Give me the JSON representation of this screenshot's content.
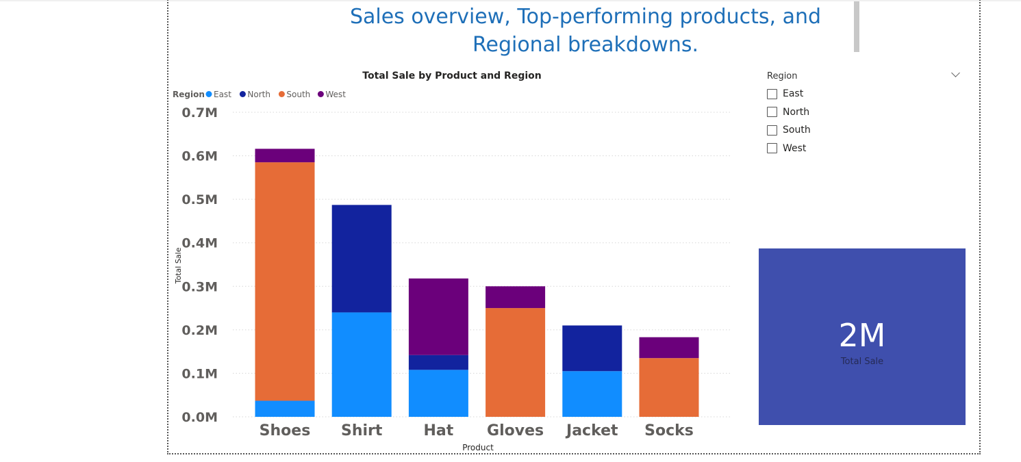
{
  "page": {
    "title": "Sales overview, Top-performing products, and Regional breakdowns."
  },
  "chart_data": {
    "type": "bar",
    "stacked": true,
    "title": "Total Sale by Product and Region",
    "xlabel": "Product",
    "ylabel": "Total Sale",
    "legend_title": "Region",
    "legend_position": "top-left",
    "categories": [
      "Shoes",
      "Shirt",
      "Hat",
      "Gloves",
      "Jacket",
      "Socks"
    ],
    "series": [
      {
        "name": "East",
        "color": "#118dff",
        "values": [
          37000,
          240000,
          108000,
          0,
          105000,
          0
        ]
      },
      {
        "name": "North",
        "color": "#12239e",
        "values": [
          0,
          247000,
          34000,
          0,
          105000,
          0
        ]
      },
      {
        "name": "South",
        "color": "#e66c37",
        "values": [
          548000,
          0,
          0,
          250000,
          0,
          135000
        ]
      },
      {
        "name": "West",
        "color": "#6b007b",
        "values": [
          31000,
          0,
          176000,
          50000,
          0,
          48000
        ]
      }
    ],
    "ylim": [
      0,
      700000
    ],
    "yticks": [
      0,
      100000,
      200000,
      300000,
      400000,
      500000,
      600000,
      700000
    ],
    "ytick_labels": [
      "0.0M",
      "0.1M",
      "0.2M",
      "0.3M",
      "0.4M",
      "0.5M",
      "0.6M",
      "0.7M"
    ],
    "grid": true
  },
  "slicer": {
    "title": "Region",
    "items": [
      "East",
      "North",
      "South",
      "West"
    ]
  },
  "card": {
    "value": "2M",
    "label": "Total Sale"
  }
}
